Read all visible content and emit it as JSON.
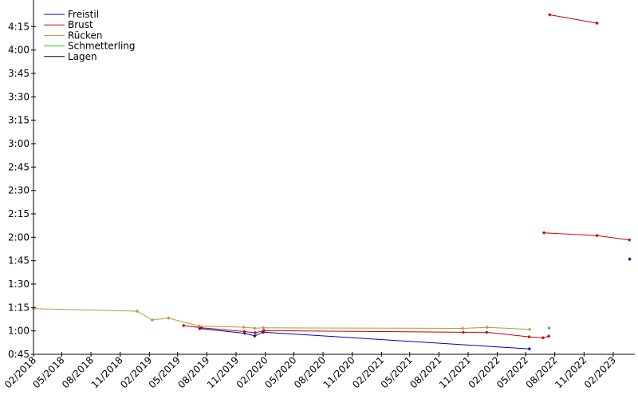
{
  "chart_data": {
    "type": "line",
    "title": "",
    "xlabel": "",
    "ylabel": "",
    "y_unit": "m:ss",
    "x_unit": "date",
    "xlim": [
      "2018-02-01",
      "2023-04-10"
    ],
    "ylim": [
      45,
      270
    ],
    "y_ticks": [
      {
        "value": 45,
        "label": "0:45"
      },
      {
        "value": 60,
        "label": "1:00"
      },
      {
        "value": 75,
        "label": "1:15"
      },
      {
        "value": 90,
        "label": "1:30"
      },
      {
        "value": 105,
        "label": "1:45"
      },
      {
        "value": 120,
        "label": "2:00"
      },
      {
        "value": 135,
        "label": "2:15"
      },
      {
        "value": 150,
        "label": "2:30"
      },
      {
        "value": 165,
        "label": "2:45"
      },
      {
        "value": 180,
        "label": "3:00"
      },
      {
        "value": 195,
        "label": "3:15"
      },
      {
        "value": 210,
        "label": "3:30"
      },
      {
        "value": 225,
        "label": "3:45"
      },
      {
        "value": 240,
        "label": "4:00"
      },
      {
        "value": 255,
        "label": "4:15"
      }
    ],
    "x_ticks": [
      {
        "value": "2018-02-01",
        "label": "02/2018"
      },
      {
        "value": "2018-05-01",
        "label": "05/2018"
      },
      {
        "value": "2018-08-01",
        "label": "08/2018"
      },
      {
        "value": "2018-11-01",
        "label": "11/2018"
      },
      {
        "value": "2019-02-01",
        "label": "02/2019"
      },
      {
        "value": "2019-05-01",
        "label": "05/2019"
      },
      {
        "value": "2019-08-01",
        "label": "08/2019"
      },
      {
        "value": "2019-11-01",
        "label": "11/2019"
      },
      {
        "value": "2020-02-01",
        "label": "02/2020"
      },
      {
        "value": "2020-05-01",
        "label": "05/2020"
      },
      {
        "value": "2020-08-01",
        "label": "08/2020"
      },
      {
        "value": "2020-11-01",
        "label": "11/2020"
      },
      {
        "value": "2021-02-01",
        "label": "02/2021"
      },
      {
        "value": "2021-05-01",
        "label": "05/2021"
      },
      {
        "value": "2021-08-01",
        "label": "08/2021"
      },
      {
        "value": "2021-11-01",
        "label": "11/2021"
      },
      {
        "value": "2022-02-01",
        "label": "02/2022"
      },
      {
        "value": "2022-05-01",
        "label": "05/2022"
      },
      {
        "value": "2022-08-01",
        "label": "08/2022"
      },
      {
        "value": "2022-11-01",
        "label": "11/2022"
      },
      {
        "value": "2023-02-01",
        "label": "02/2023"
      }
    ],
    "grid": false,
    "legend_position": "top-left",
    "series": [
      {
        "name": "Freistil",
        "color": "#0000cc",
        "segments": [
          [
            {
              "x": "2019-07-10",
              "y": 61.5
            },
            {
              "x": "2019-11-28",
              "y": 58.5
            },
            {
              "x": "2019-12-30",
              "y": 56.8
            },
            {
              "x": "2020-01-25",
              "y": 59.2
            },
            {
              "x": "2022-05-13",
              "y": 48.5
            }
          ],
          [
            {
              "x": "2023-03-25",
              "y": 106.0
            }
          ]
        ]
      },
      {
        "name": "Brust",
        "color": "#cc0000",
        "segments": [
          [
            {
              "x": "2019-05-20",
              "y": 63.4
            },
            {
              "x": "2019-07-15",
              "y": 62.0
            },
            {
              "x": "2019-11-27",
              "y": 59.6
            },
            {
              "x": "2019-12-31",
              "y": 58.8
            },
            {
              "x": "2020-01-28",
              "y": 60.2
            },
            {
              "x": "2021-10-17",
              "y": 59.1
            },
            {
              "x": "2021-12-30",
              "y": 59.1
            },
            {
              "x": "2022-05-12",
              "y": 56.2
            },
            {
              "x": "2022-06-25",
              "y": 55.6
            },
            {
              "x": "2022-07-13",
              "y": 56.6
            }
          ],
          [
            {
              "x": "2022-06-28",
              "y": 122.9
            },
            {
              "x": "2022-12-12",
              "y": 121.1
            },
            {
              "x": "2023-03-24",
              "y": 118.3
            }
          ],
          [
            {
              "x": "2022-07-16",
              "y": 262.6
            },
            {
              "x": "2022-12-12",
              "y": 257.2
            }
          ]
        ]
      },
      {
        "name": "Rücken",
        "color": "#b59a3a",
        "segments": [
          [
            {
              "x": "2018-02-01",
              "y": 74.3
            },
            {
              "x": "2018-12-24",
              "y": 72.6
            },
            {
              "x": "2019-02-10",
              "y": 67.0
            },
            {
              "x": "2019-04-02",
              "y": 68.2
            },
            {
              "x": "2019-07-08",
              "y": 63.1
            },
            {
              "x": "2019-11-25",
              "y": 62.4
            },
            {
              "x": "2019-12-29",
              "y": 61.7
            },
            {
              "x": "2020-01-26",
              "y": 62.0
            },
            {
              "x": "2021-10-15",
              "y": 61.6
            },
            {
              "x": "2021-12-31",
              "y": 62.3
            },
            {
              "x": "2022-05-14",
              "y": 61.0
            }
          ]
        ]
      },
      {
        "name": "Schmetterling",
        "color": "#22cc22",
        "segments": [
          [
            {
              "x": "2022-07-14",
              "y": 61.8
            }
          ]
        ]
      },
      {
        "name": "Lagen",
        "color": "#000000",
        "segments": []
      }
    ]
  }
}
